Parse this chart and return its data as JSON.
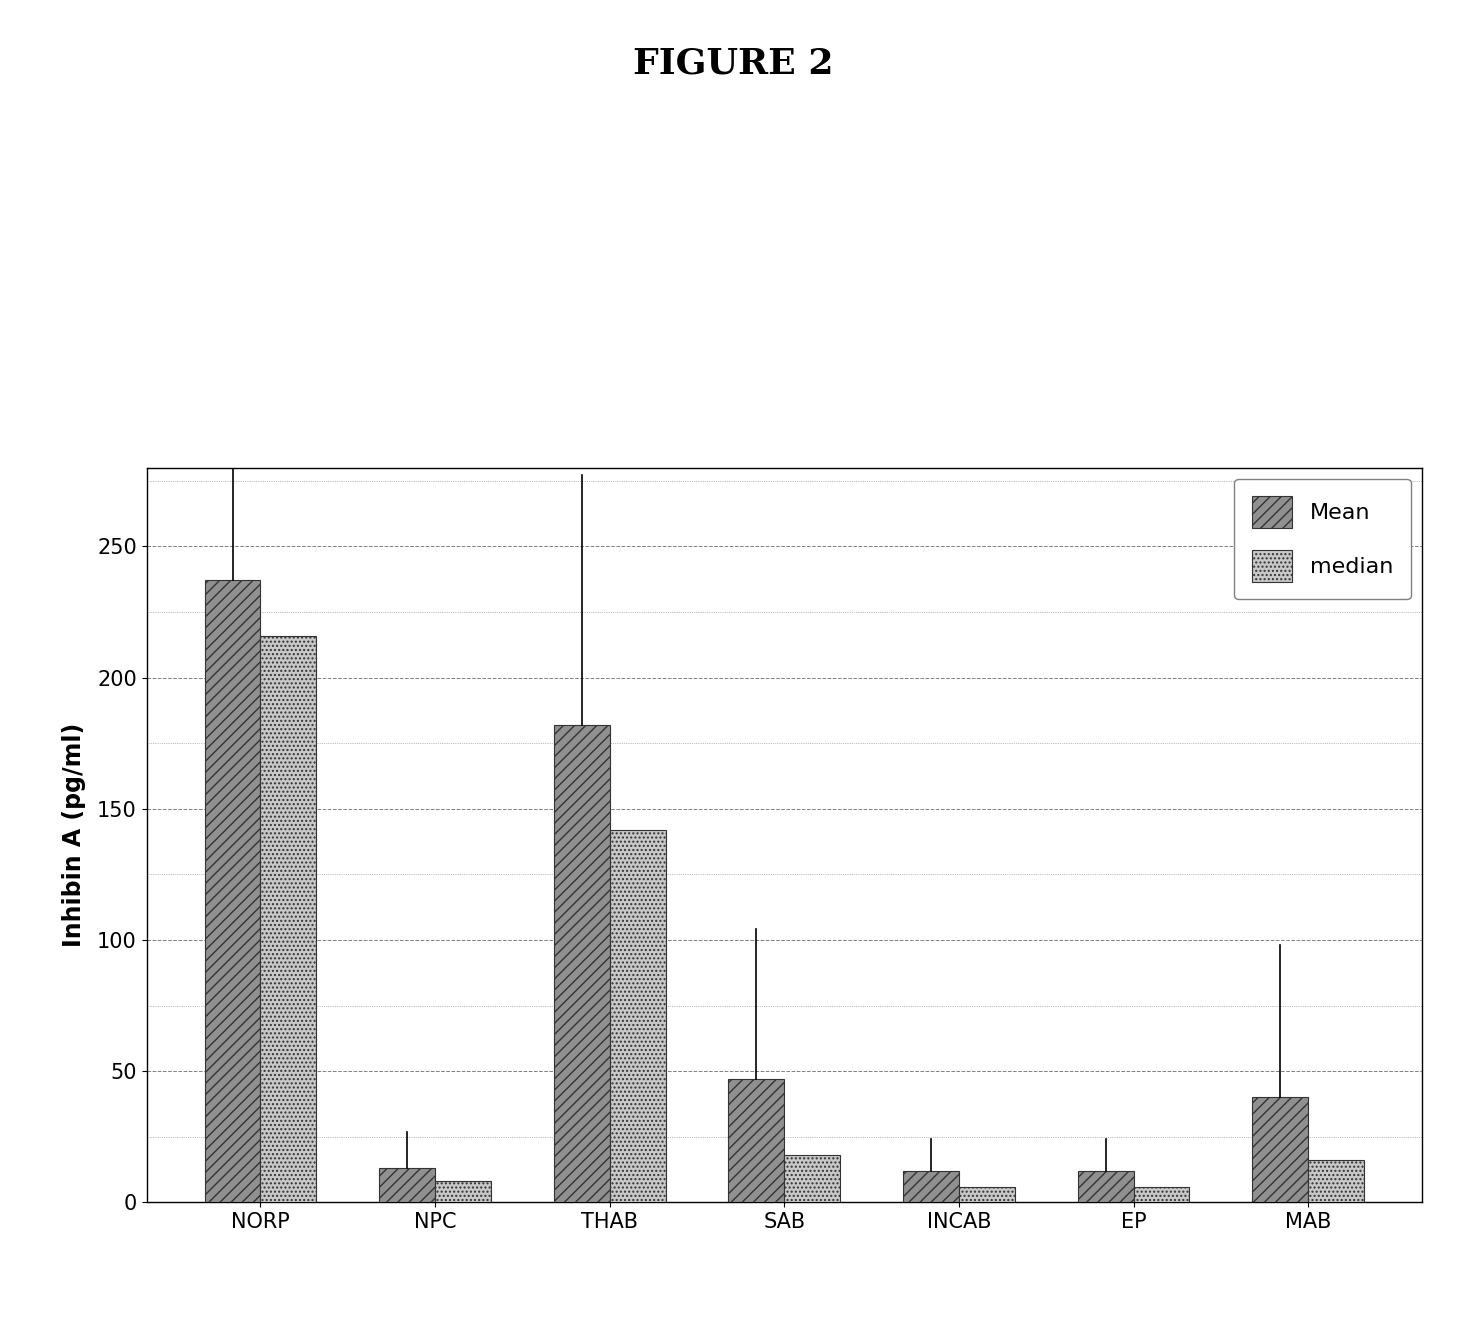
{
  "title": "FIGURE 2",
  "ylabel": "Inhibin A (pg/ml)",
  "categories": [
    "NORP",
    "NPC",
    "THAB",
    "SAB",
    "INCAB",
    "EP",
    "MAB"
  ],
  "mean_values": [
    237,
    13,
    182,
    47,
    12,
    12,
    40
  ],
  "median_values": [
    216,
    8,
    142,
    18,
    6,
    6,
    16
  ],
  "mean_errors_upper": [
    45,
    14,
    95,
    57,
    12,
    12,
    58
  ],
  "ylim": [
    0,
    280
  ],
  "yticks": [
    0,
    50,
    100,
    150,
    200,
    250
  ],
  "yticks_minor": [
    25,
    75,
    125,
    175,
    225
  ],
  "mean_color": "#888888",
  "median_color": "#cccccc",
  "bar_width": 0.32,
  "title_fontsize": 26,
  "axis_fontsize": 17,
  "tick_fontsize": 15,
  "legend_labels": [
    "Mean",
    "median"
  ],
  "background_color": "#ffffff"
}
